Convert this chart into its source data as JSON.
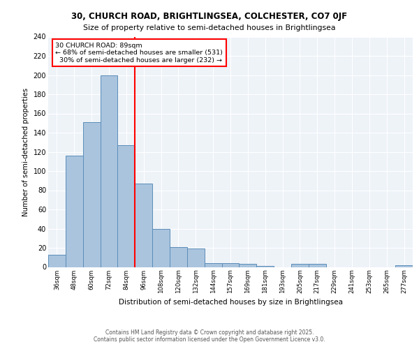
{
  "title1": "30, CHURCH ROAD, BRIGHTLINGSEA, COLCHESTER, CO7 0JF",
  "title2": "Size of property relative to semi-detached houses in Brightlingsea",
  "xlabel": "Distribution of semi-detached houses by size in Brightlingsea",
  "ylabel": "Number of semi-detached properties",
  "categories": [
    "36sqm",
    "48sqm",
    "60sqm",
    "72sqm",
    "84sqm",
    "96sqm",
    "108sqm",
    "120sqm",
    "132sqm",
    "144sqm",
    "157sqm",
    "169sqm",
    "181sqm",
    "193sqm",
    "205sqm",
    "217sqm",
    "229sqm",
    "241sqm",
    "253sqm",
    "265sqm",
    "277sqm"
  ],
  "values": [
    13,
    116,
    151,
    200,
    127,
    87,
    40,
    21,
    19,
    4,
    4,
    3,
    1,
    0,
    3,
    3,
    0,
    0,
    0,
    0,
    2
  ],
  "bar_color": "#aac4de",
  "bar_edge_color": "#5b8db8",
  "vline_color": "red",
  "marker_label": "30 CHURCH ROAD: 89sqm",
  "pct_smaller": "68%",
  "pct_smaller_n": 531,
  "pct_larger": "30%",
  "pct_larger_n": 232,
  "ylim": [
    0,
    240
  ],
  "yticks": [
    0,
    20,
    40,
    60,
    80,
    100,
    120,
    140,
    160,
    180,
    200,
    220,
    240
  ],
  "bg_color": "#eef3f8",
  "grid_color": "white",
  "footer1": "Contains HM Land Registry data © Crown copyright and database right 2025.",
  "footer2": "Contains public sector information licensed under the Open Government Licence v3.0."
}
